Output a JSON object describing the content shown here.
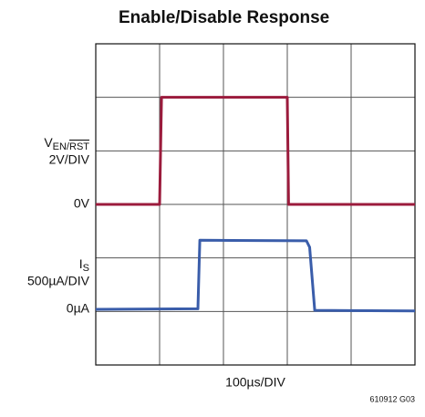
{
  "chart_data": {
    "type": "line",
    "title": "Enable/Disable Response",
    "xlabel": "100µs/DIV",
    "footnote": "610912 G03",
    "xlim": [
      0,
      5
    ],
    "ylim": [
      0,
      6
    ],
    "xticks": [
      0,
      1,
      2,
      3,
      4,
      5
    ],
    "yticks": [
      0,
      1,
      2,
      3,
      4,
      5,
      6
    ],
    "grid": true,
    "series": [
      {
        "name": "V",
        "subscript": "EN/",
        "subscript_overlined": "RST",
        "scale": "2V/DIV",
        "zero_label": "0V",
        "color": "#9b1b3c",
        "x": [
          0,
          1.0,
          1.03,
          3.0,
          3.02,
          5
        ],
        "values": [
          3,
          3,
          5,
          5,
          3,
          3
        ]
      },
      {
        "name": "I",
        "subscript": "S",
        "scale": "500µA/DIV",
        "zero_label": "0µA",
        "color": "#3a5daa",
        "x": [
          0,
          1.6,
          1.63,
          3.3,
          3.35,
          3.43,
          5
        ],
        "values": [
          1.04,
          1.05,
          2.33,
          2.32,
          2.2,
          1.02,
          1.01
        ]
      }
    ]
  }
}
